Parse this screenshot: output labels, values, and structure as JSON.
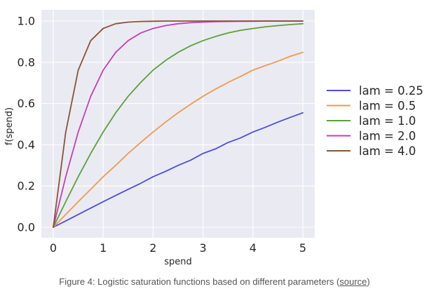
{
  "chart_data": {
    "type": "line",
    "xlabel": "spend",
    "ylabel": "f(spend)",
    "xlim": [
      0,
      5
    ],
    "ylim": [
      0,
      1
    ],
    "x_ticks": [
      0,
      1,
      2,
      3,
      4,
      5
    ],
    "y_ticks": [
      0.0,
      0.2,
      0.4,
      0.6,
      0.8,
      1.0
    ],
    "x_tick_labels": [
      "0",
      "1",
      "2",
      "3",
      "4",
      "5"
    ],
    "y_tick_labels": [
      "0.0",
      "0.2",
      "0.4",
      "0.6",
      "0.8",
      "1.0"
    ],
    "grid": true,
    "legend_position": "right-outside",
    "x": [
      0,
      0.25,
      0.5,
      0.75,
      1,
      1.25,
      1.5,
      1.75,
      2,
      2.25,
      2.5,
      2.75,
      3,
      3.25,
      3.5,
      3.75,
      4,
      4.25,
      4.5,
      4.75,
      5
    ],
    "series": [
      {
        "name": "lam = 0.25",
        "color": "#4c4cdc",
        "values": [
          0,
          0.031,
          0.062,
          0.093,
          0.124,
          0.154,
          0.184,
          0.213,
          0.245,
          0.271,
          0.3,
          0.325,
          0.358,
          0.38,
          0.411,
          0.433,
          0.462,
          0.485,
          0.51,
          0.533,
          0.555
        ]
      },
      {
        "name": "lam = 0.5",
        "color": "#ee9a4d",
        "values": [
          0,
          0.062,
          0.124,
          0.184,
          0.245,
          0.3,
          0.358,
          0.411,
          0.462,
          0.51,
          0.555,
          0.596,
          0.635,
          0.67,
          0.702,
          0.731,
          0.762,
          0.784,
          0.805,
          0.829,
          0.848
        ]
      },
      {
        "name": "lam = 1.0",
        "color": "#5ba03a",
        "values": [
          0,
          0.124,
          0.245,
          0.358,
          0.462,
          0.555,
          0.635,
          0.702,
          0.762,
          0.809,
          0.848,
          0.88,
          0.905,
          0.925,
          0.942,
          0.955,
          0.964,
          0.972,
          0.978,
          0.983,
          0.987
        ]
      },
      {
        "name": "lam = 2.0",
        "color": "#c43fb3",
        "values": [
          0,
          0.245,
          0.462,
          0.635,
          0.762,
          0.848,
          0.905,
          0.942,
          0.964,
          0.978,
          0.987,
          0.992,
          0.995,
          0.997,
          0.998,
          0.999,
          0.999,
          1.0,
          1.0,
          1.0,
          1.0
        ]
      },
      {
        "name": "lam = 4.0",
        "color": "#8b5236",
        "values": [
          0,
          0.462,
          0.762,
          0.905,
          0.964,
          0.987,
          0.995,
          0.998,
          0.999,
          1.0,
          1.0,
          1.0,
          1.0,
          1.0,
          1.0,
          1.0,
          1.0,
          1.0,
          1.0,
          1.0,
          1.0
        ]
      }
    ]
  },
  "caption": {
    "text": "Figure 4: Logistic saturation functions based on different parameters (",
    "link": "source",
    "close": ")"
  }
}
